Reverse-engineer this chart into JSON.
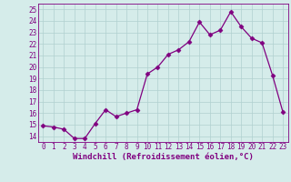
{
  "x": [
    0,
    1,
    2,
    3,
    4,
    5,
    6,
    7,
    8,
    9,
    10,
    11,
    12,
    13,
    14,
    15,
    16,
    17,
    18,
    19,
    20,
    21,
    22,
    23
  ],
  "y": [
    14.9,
    14.8,
    14.6,
    13.8,
    13.8,
    15.1,
    16.3,
    15.7,
    16.0,
    16.3,
    19.4,
    20.0,
    21.1,
    21.5,
    22.2,
    23.9,
    22.8,
    23.2,
    24.8,
    23.5,
    22.5,
    22.1,
    19.3,
    16.1
  ],
  "line_color": "#800080",
  "marker": "D",
  "marker_size": 2.5,
  "xlabel": "Windchill (Refroidissement éolien,°C)",
  "yticks": [
    14,
    15,
    16,
    17,
    18,
    19,
    20,
    21,
    22,
    23,
    24,
    25
  ],
  "xlim": [
    -0.5,
    23.5
  ],
  "ylim": [
    13.5,
    25.5
  ],
  "bg_color": "#d5ecea",
  "grid_color": "#b0d0cf",
  "tick_fontsize": 5.5,
  "xlabel_fontsize": 6.5
}
